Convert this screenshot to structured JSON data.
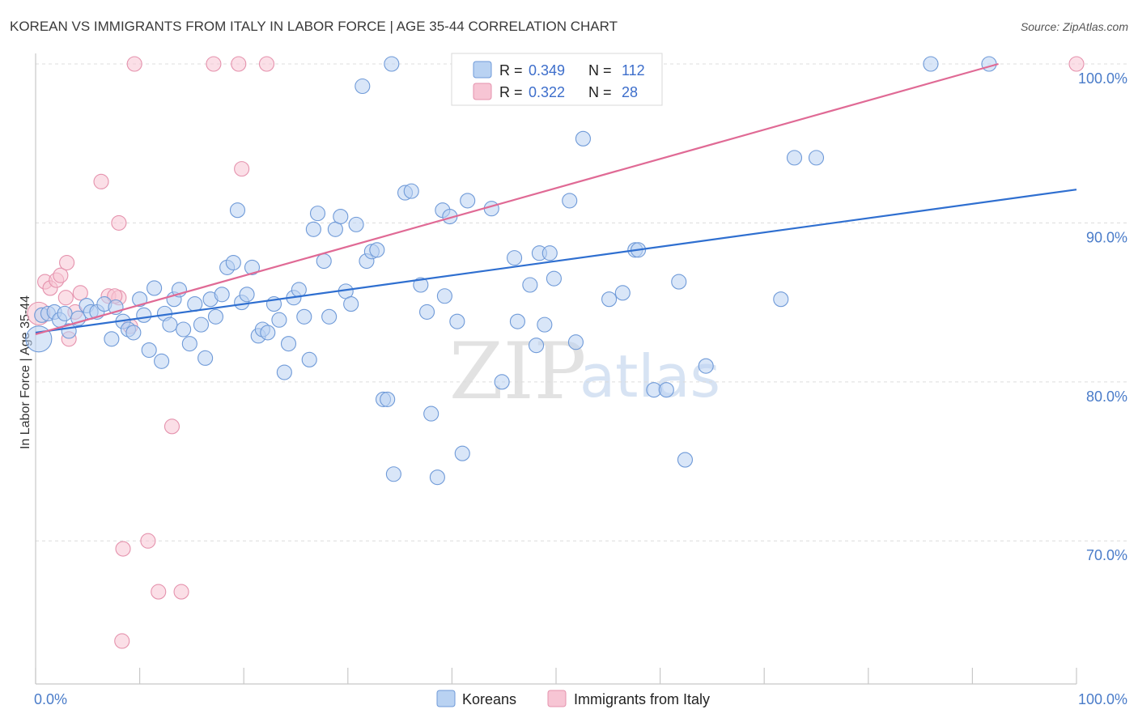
{
  "header": {
    "title": "KOREAN VS IMMIGRANTS FROM ITALY IN LABOR FORCE | AGE 35-44 CORRELATION CHART",
    "source": "Source: ZipAtlas.com"
  },
  "watermark": {
    "zip": "ZIP",
    "atlas": "atlas"
  },
  "legend": {
    "r_label": "R =",
    "n_label": "N =",
    "series": [
      {
        "r": "0.349",
        "n": "112"
      },
      {
        "r": "0.322",
        "n": "28"
      }
    ]
  },
  "bottom_legend": {
    "items": [
      "Koreans",
      "Immigrants from Italy"
    ]
  },
  "colors": {
    "koreans_fill": "#b9d2f2",
    "koreans_stroke": "#6f9ad8",
    "koreans_line": "#2f6fd0",
    "italy_fill": "#f7c5d4",
    "italy_stroke": "#e592ad",
    "italy_line": "#e06a95",
    "tick_text": "#4a7cc9",
    "grid": "#dcdcdc"
  },
  "chart_data": {
    "type": "scatter",
    "title": "KOREAN VS IMMIGRANTS FROM ITALY IN LABOR FORCE | AGE 35-44 CORRELATION CHART",
    "xlabel": "",
    "ylabel": "In Labor Force | Age 35-44",
    "xlim": [
      0,
      100
    ],
    "ylim": [
      61,
      101.5
    ],
    "x_tick_labels": [
      "0.0%",
      "100.0%"
    ],
    "x_tick_values": [
      0,
      100
    ],
    "y_tick_labels": [
      "70.0%",
      "80.0%",
      "90.0%",
      "100.0%"
    ],
    "y_tick_values": [
      70,
      80,
      90,
      100
    ],
    "grid": true,
    "legend_position": "top-center",
    "series": [
      {
        "name": "Koreans",
        "trend": {
          "x": [
            0,
            100
          ],
          "y": [
            83.1,
            92.1
          ]
        },
        "points": [
          [
            0.3,
            82.7
          ],
          [
            0.6,
            84.2
          ],
          [
            1.2,
            84.3
          ],
          [
            1.8,
            84.4
          ],
          [
            2.3,
            83.9
          ],
          [
            2.8,
            84.3
          ],
          [
            3.2,
            83.2
          ],
          [
            4.1,
            84.0
          ],
          [
            4.9,
            84.8
          ],
          [
            5.3,
            84.4
          ],
          [
            5.9,
            84.4
          ],
          [
            6.6,
            84.9
          ],
          [
            7.3,
            82.7
          ],
          [
            7.7,
            84.7
          ],
          [
            8.4,
            83.8
          ],
          [
            8.9,
            83.3
          ],
          [
            9.4,
            83.1
          ],
          [
            10.0,
            85.2
          ],
          [
            10.4,
            84.2
          ],
          [
            10.9,
            82.0
          ],
          [
            11.4,
            85.9
          ],
          [
            12.1,
            81.3
          ],
          [
            12.4,
            84.3
          ],
          [
            12.9,
            83.6
          ],
          [
            13.3,
            85.2
          ],
          [
            13.8,
            85.8
          ],
          [
            14.2,
            83.3
          ],
          [
            14.8,
            82.4
          ],
          [
            15.3,
            84.9
          ],
          [
            15.9,
            83.6
          ],
          [
            16.3,
            81.5
          ],
          [
            16.8,
            85.2
          ],
          [
            17.3,
            84.1
          ],
          [
            17.9,
            85.5
          ],
          [
            18.4,
            87.2
          ],
          [
            19.0,
            87.5
          ],
          [
            19.4,
            90.8
          ],
          [
            19.8,
            85.0
          ],
          [
            20.3,
            85.5
          ],
          [
            20.8,
            87.2
          ],
          [
            21.4,
            82.9
          ],
          [
            21.8,
            83.3
          ],
          [
            22.3,
            83.1
          ],
          [
            22.9,
            84.9
          ],
          [
            23.4,
            83.9
          ],
          [
            23.9,
            80.6
          ],
          [
            24.3,
            82.4
          ],
          [
            24.8,
            85.3
          ],
          [
            25.3,
            85.8
          ],
          [
            25.8,
            84.1
          ],
          [
            26.3,
            81.4
          ],
          [
            26.7,
            89.6
          ],
          [
            27.1,
            90.6
          ],
          [
            27.7,
            87.6
          ],
          [
            28.2,
            84.1
          ],
          [
            28.8,
            89.6
          ],
          [
            29.3,
            90.4
          ],
          [
            29.8,
            85.7
          ],
          [
            30.3,
            84.9
          ],
          [
            30.8,
            89.9
          ],
          [
            31.4,
            98.6
          ],
          [
            31.8,
            87.6
          ],
          [
            32.3,
            88.2
          ],
          [
            32.8,
            88.3
          ],
          [
            33.4,
            78.9
          ],
          [
            33.8,
            78.9
          ],
          [
            34.4,
            74.2
          ],
          [
            34.2,
            100.0
          ],
          [
            35.5,
            91.9
          ],
          [
            36.1,
            92.0
          ],
          [
            37.0,
            86.1
          ],
          [
            37.6,
            84.4
          ],
          [
            38.0,
            78.0
          ],
          [
            38.6,
            74.0
          ],
          [
            39.1,
            90.8
          ],
          [
            39.3,
            85.4
          ],
          [
            39.8,
            90.4
          ],
          [
            40.5,
            83.8
          ],
          [
            41.0,
            75.5
          ],
          [
            41.5,
            91.4
          ],
          [
            43.8,
            90.9
          ],
          [
            44.8,
            80.0
          ],
          [
            46.0,
            87.8
          ],
          [
            46.3,
            83.8
          ],
          [
            47.5,
            86.1
          ],
          [
            48.4,
            88.1
          ],
          [
            48.9,
            83.6
          ],
          [
            49.4,
            88.1
          ],
          [
            48.1,
            82.3
          ],
          [
            49.8,
            86.5
          ],
          [
            51.3,
            91.4
          ],
          [
            51.9,
            82.5
          ],
          [
            52.6,
            95.3
          ],
          [
            55.1,
            85.2
          ],
          [
            56.4,
            85.6
          ],
          [
            57.6,
            88.3
          ],
          [
            57.9,
            88.3
          ],
          [
            59.4,
            79.5
          ],
          [
            60.6,
            79.5
          ],
          [
            61.8,
            86.3
          ],
          [
            62.4,
            75.1
          ],
          [
            64.4,
            81.0
          ],
          [
            71.6,
            85.2
          ],
          [
            72.9,
            94.1
          ],
          [
            75.0,
            94.1
          ],
          [
            86.0,
            100.0
          ],
          [
            91.6,
            100.0
          ],
          [
            55.8,
            100.0
          ]
        ]
      },
      {
        "name": "Immigrants from Italy",
        "trend": {
          "x": [
            0,
            92.5
          ],
          "y": [
            83.0,
            100.0
          ]
        },
        "points": [
          [
            0.3,
            84.3
          ],
          [
            0.9,
            86.3
          ],
          [
            1.4,
            85.9
          ],
          [
            2.0,
            86.4
          ],
          [
            2.4,
            86.7
          ],
          [
            2.9,
            85.3
          ],
          [
            3.2,
            82.7
          ],
          [
            3.0,
            87.5
          ],
          [
            3.8,
            84.4
          ],
          [
            4.3,
            85.6
          ],
          [
            6.3,
            92.6
          ],
          [
            7.0,
            85.4
          ],
          [
            8.0,
            85.3
          ],
          [
            7.6,
            85.4
          ],
          [
            9.1,
            83.5
          ],
          [
            8.0,
            90.0
          ],
          [
            8.4,
            69.5
          ],
          [
            8.3,
            63.7
          ],
          [
            10.8,
            70.0
          ],
          [
            11.8,
            66.8
          ],
          [
            13.1,
            77.2
          ],
          [
            14.0,
            66.8
          ],
          [
            9.5,
            100.0
          ],
          [
            17.1,
            100.0
          ],
          [
            19.5,
            100.0
          ],
          [
            19.8,
            93.4
          ],
          [
            22.2,
            100.0
          ],
          [
            100.0,
            100.0
          ]
        ]
      }
    ]
  }
}
